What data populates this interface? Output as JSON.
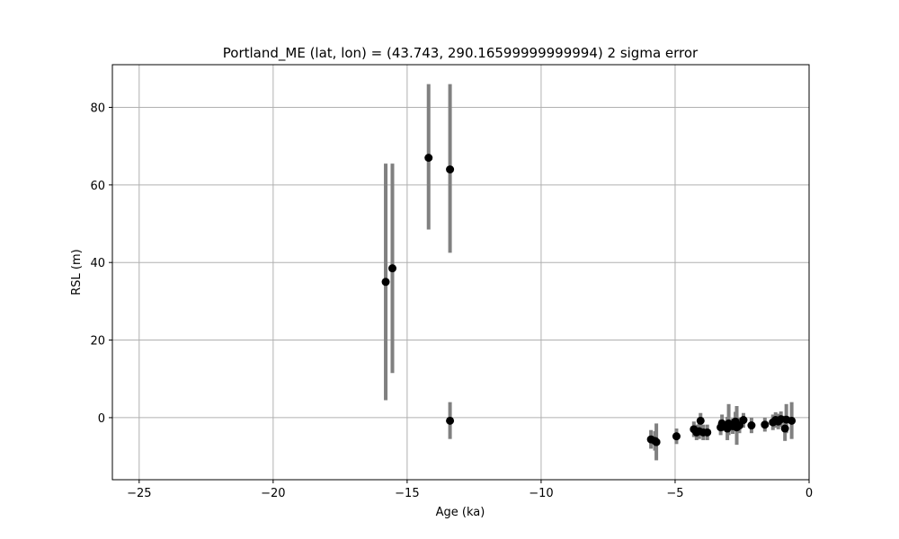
{
  "chart_data": {
    "type": "scatter",
    "title": "Portland_ME (lat, lon) = (43.743, 290.16599999999994)  2 sigma error",
    "xlabel": "Age (ka)",
    "ylabel": "RSL (m)",
    "xlim": [
      -26,
      0
    ],
    "ylim": [
      -16,
      91
    ],
    "xticks": [
      -25,
      -20,
      -15,
      -10,
      -5,
      0
    ],
    "xtick_labels": [
      "−25",
      "−20",
      "−15",
      "−10",
      "−5",
      "0"
    ],
    "yticks": [
      0,
      20,
      40,
      60,
      80
    ],
    "ytick_labels": [
      "0",
      "20",
      "40",
      "60",
      "80"
    ],
    "grid": true,
    "colors": {
      "marker": "#000000",
      "errorbar": "#808080",
      "grid": "#b0b0b0",
      "frame": "#000000"
    },
    "points": [
      {
        "x": -15.8,
        "y": 35.0,
        "lo": 4.5,
        "hi": 65.5
      },
      {
        "x": -15.55,
        "y": 38.5,
        "lo": 11.5,
        "hi": 65.5
      },
      {
        "x": -14.2,
        "y": 67.0,
        "lo": 48.5,
        "hi": 86.0
      },
      {
        "x": -13.4,
        "y": 64.0,
        "lo": 42.5,
        "hi": 86.0
      },
      {
        "x": -13.4,
        "y": -0.8,
        "lo": -5.5,
        "hi": 4.0
      },
      {
        "x": -5.9,
        "y": -5.6,
        "lo": -8.0,
        "hi": -3.2
      },
      {
        "x": -5.75,
        "y": -6.0,
        "lo": -8.5,
        "hi": -3.5
      },
      {
        "x": -5.7,
        "y": -6.3,
        "lo": -11.0,
        "hi": -1.5
      },
      {
        "x": -4.95,
        "y": -4.8,
        "lo": -6.8,
        "hi": -2.8
      },
      {
        "x": -4.3,
        "y": -3.0,
        "lo": -5.0,
        "hi": -1.0
      },
      {
        "x": -4.2,
        "y": -3.8,
        "lo": -5.8,
        "hi": -1.8
      },
      {
        "x": -4.1,
        "y": -3.5,
        "lo": -5.5,
        "hi": -1.5
      },
      {
        "x": -4.05,
        "y": -0.8,
        "lo": -2.8,
        "hi": 1.2
      },
      {
        "x": -3.95,
        "y": -3.8,
        "lo": -5.8,
        "hi": -1.8
      },
      {
        "x": -3.8,
        "y": -3.8,
        "lo": -5.8,
        "hi": -1.8
      },
      {
        "x": -3.3,
        "y": -2.5,
        "lo": -4.5,
        "hi": -0.5
      },
      {
        "x": -3.25,
        "y": -1.5,
        "lo": -3.5,
        "hi": 0.8
      },
      {
        "x": -3.05,
        "y": -2.8,
        "lo": -5.8,
        "hi": 0.2
      },
      {
        "x": -3.0,
        "y": -1.5,
        "lo": -4.5,
        "hi": 3.5
      },
      {
        "x": -2.85,
        "y": -2.2,
        "lo": -4.2,
        "hi": -0.2
      },
      {
        "x": -2.75,
        "y": -1.0,
        "lo": -3.5,
        "hi": 1.5
      },
      {
        "x": -2.7,
        "y": -2.5,
        "lo": -7.0,
        "hi": 3.0
      },
      {
        "x": -2.6,
        "y": -2.0,
        "lo": -4.0,
        "hi": 0.0
      },
      {
        "x": -2.45,
        "y": -0.6,
        "lo": -2.6,
        "hi": 1.2
      },
      {
        "x": -2.15,
        "y": -2.0,
        "lo": -4.0,
        "hi": 0.0
      },
      {
        "x": -1.65,
        "y": -1.8,
        "lo": -3.6,
        "hi": 0.0
      },
      {
        "x": -1.35,
        "y": -1.2,
        "lo": -3.2,
        "hi": 0.8
      },
      {
        "x": -1.25,
        "y": -0.6,
        "lo": -2.6,
        "hi": 1.4
      },
      {
        "x": -1.15,
        "y": -1.0,
        "lo": -3.0,
        "hi": 1.0
      },
      {
        "x": -1.05,
        "y": -0.4,
        "lo": -2.4,
        "hi": 1.6
      },
      {
        "x": -0.9,
        "y": -2.8,
        "lo": -6.0,
        "hi": 0.5
      },
      {
        "x": -0.85,
        "y": -0.5,
        "lo": -4.0,
        "hi": 3.5
      },
      {
        "x": -0.65,
        "y": -0.8,
        "lo": -5.5,
        "hi": 4.0
      }
    ]
  }
}
